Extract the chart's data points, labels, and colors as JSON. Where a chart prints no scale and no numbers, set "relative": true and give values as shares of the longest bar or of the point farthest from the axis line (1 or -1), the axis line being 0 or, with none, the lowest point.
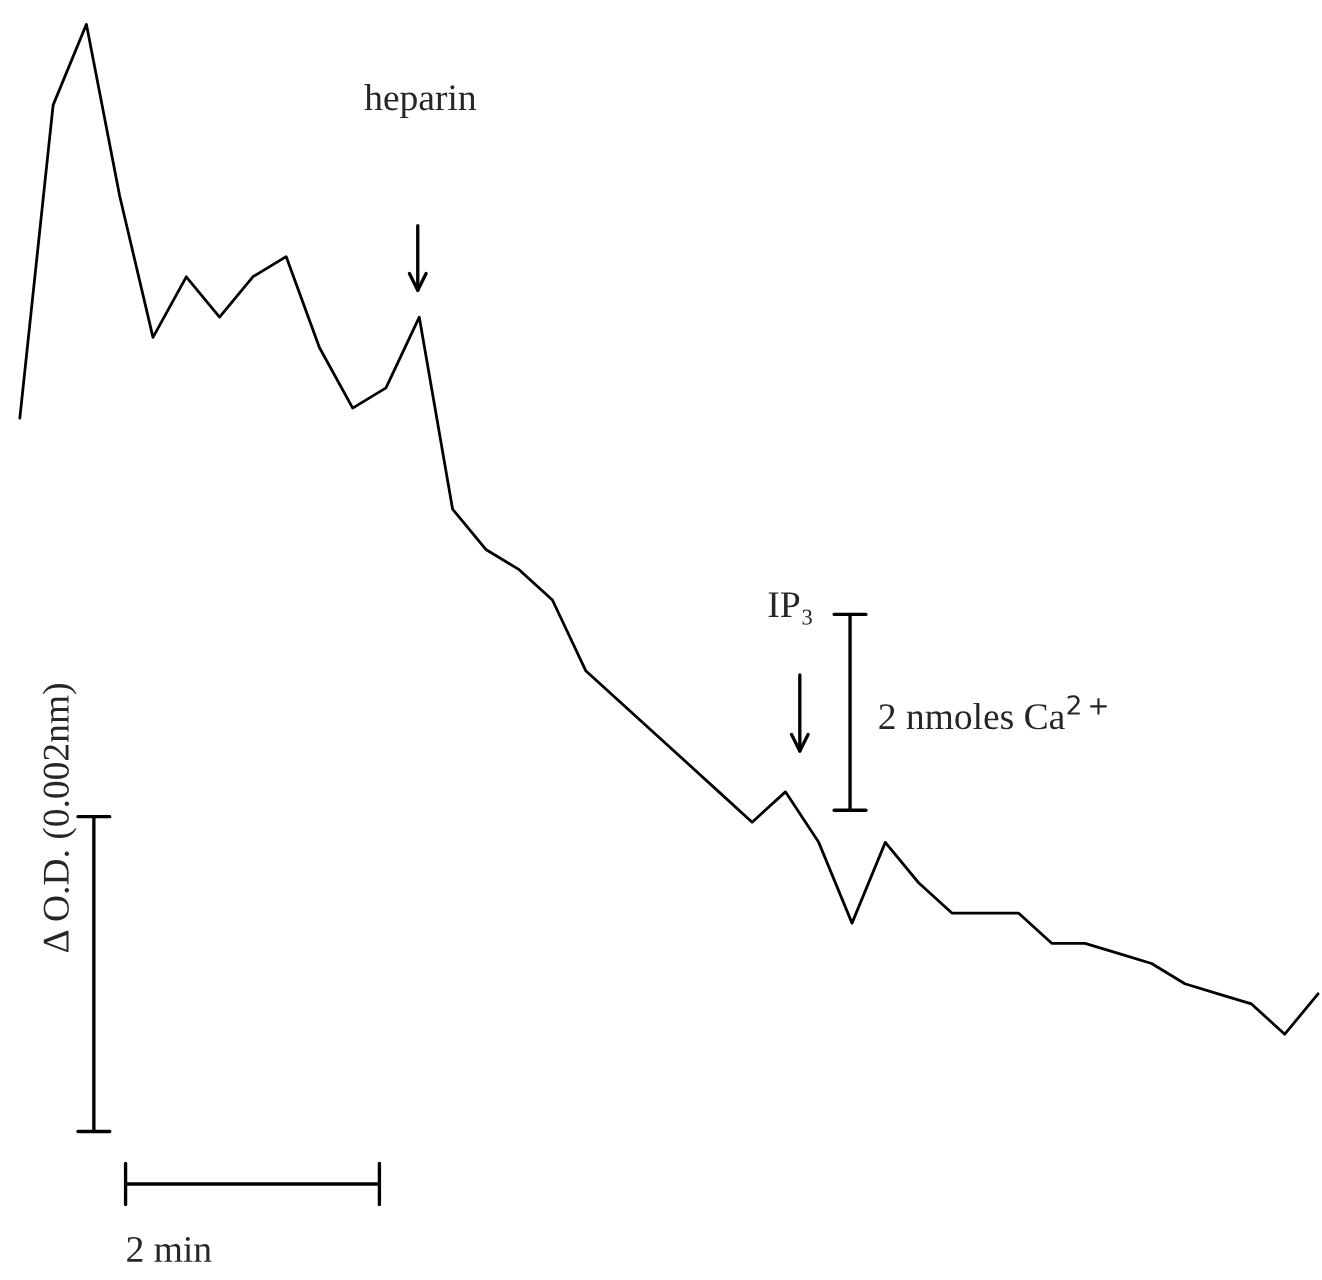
{
  "chart_data": {
    "type": "line",
    "relative": true,
    "legend": false,
    "marker": "none",
    "line_style": "solid",
    "categories": [
      null,
      null,
      null,
      null,
      null,
      null,
      null,
      null,
      null,
      null,
      null,
      null,
      null,
      null,
      null,
      null,
      null,
      null,
      null,
      null,
      null,
      null,
      null,
      null,
      null,
      null,
      null,
      null,
      null,
      null,
      null,
      null,
      null,
      null,
      null,
      null,
      null,
      null,
      null,
      null
    ],
    "series": [
      {
        "color": "#000000",
        "values": [
          0.61,
          0.92,
          1,
          0.83,
          0.69,
          0.75,
          0.71,
          0.75,
          0.77,
          0.68,
          0.62,
          0.64,
          0.71,
          0.52,
          0.48,
          0.46,
          0.43,
          0.36,
          0.33,
          0.3,
          0.27,
          0.24,
          0.21,
          0.24,
          0.19,
          0.11,
          0.19,
          0.15,
          0.12,
          0.12,
          0.12,
          0.09,
          0.09,
          0.08,
          0.07,
          0.05,
          0.04,
          0.03,
          0,
          0.04
        ]
      }
    ],
    "annotations": [
      "heparin",
      "IP₃",
      "2 nmoles Ca$^{2+}$",
      "Δ O.D. (0.002nm)",
      "2 min"
    ]
  }
}
